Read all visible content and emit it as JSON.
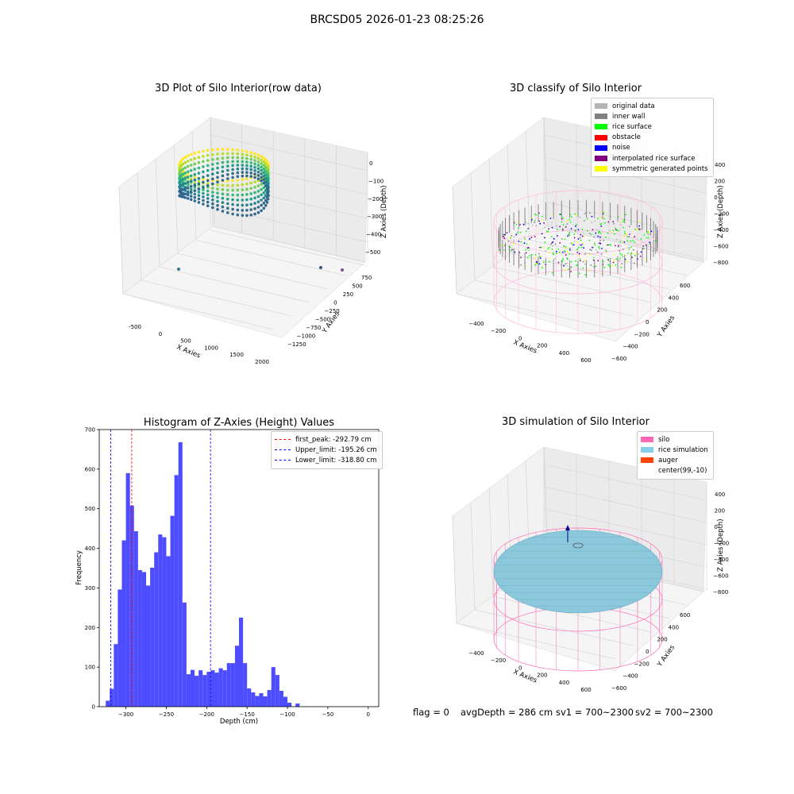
{
  "suptitle": "BRCSD05 2026-01-23 08:25:26",
  "panels": {
    "raw": {
      "title": "3D Plot of Silo Interior(row data)",
      "x_label": "X Axies",
      "y_label": "Y Axies",
      "z_label": "Z Axies (Depth)",
      "x_ticks": [
        "-500",
        "0",
        "500",
        "1000",
        "1500",
        "2000"
      ],
      "y_ticks": [
        "750",
        "500",
        "250",
        "0",
        "−250",
        "−500",
        "−750",
        "−1000",
        "−1250"
      ],
      "z_ticks": [
        "0",
        "−100",
        "−200",
        "−300",
        "−400",
        "−500"
      ]
    },
    "classify": {
      "title": "3D classify of Silo Interior",
      "x_label": "X Axies",
      "y_label": "Y Axies",
      "z_label": "Z Axies (Depth)",
      "x_ticks": [
        "−400",
        "−200",
        "0",
        "200",
        "400",
        "600"
      ],
      "y_ticks": [
        "600",
        "400",
        "200",
        "0",
        "−200",
        "−400",
        "−600"
      ],
      "z_ticks": [
        "400",
        "200",
        "0",
        "−200",
        "−400",
        "−600",
        "−800"
      ],
      "legend": [
        {
          "label": "original data",
          "color": "#b4b4b4"
        },
        {
          "label": "inner wall",
          "color": "#808080"
        },
        {
          "label": "rice surface",
          "color": "#00ff00"
        },
        {
          "label": "obstacle",
          "color": "#ff0000"
        },
        {
          "label": "noise",
          "color": "#0000ff"
        },
        {
          "label": "interpolated rice surface",
          "color": "#800080"
        },
        {
          "label": "symmetric generated points",
          "color": "#ffff00"
        }
      ]
    },
    "simulation": {
      "title": "3D simulation of Silo Interior",
      "x_label": "X Axies",
      "y_label": "Y Axies",
      "z_label": "Z Axies (Depth)",
      "x_ticks": [
        "−400",
        "−200",
        "0",
        "200",
        "400",
        "600"
      ],
      "y_ticks": [
        "600",
        "400",
        "200",
        "0",
        "−200",
        "−400",
        "−600"
      ],
      "z_ticks": [
        "400",
        "200",
        "0",
        "−200",
        "−400",
        "−600",
        "−800"
      ],
      "legend": [
        {
          "label": "silo",
          "color": "#ff69b4"
        },
        {
          "label": "rice simulation",
          "color": "#87ceeb"
        },
        {
          "label": "auger",
          "color": "#ff4500"
        },
        {
          "label": "center(99,-10)",
          "color": "#ffffff"
        }
      ]
    }
  },
  "chart_data": [
    {
      "type": "bar",
      "title": "Histogram of Z-Axies (Height) Values",
      "xlabel": "Depth (cm)",
      "ylabel": "Frequency",
      "xlim": [
        -333,
        13
      ],
      "ylim": [
        0,
        700
      ],
      "x_ticks": [
        -300,
        -250,
        -200,
        -150,
        -100,
        -50,
        0
      ],
      "y_ticks": [
        0,
        100,
        200,
        300,
        400,
        500,
        600,
        700
      ],
      "bar_color": "#4d4dff",
      "bin_width": 5,
      "bins": [
        {
          "x": -325,
          "v": 15
        },
        {
          "x": -320,
          "v": 45
        },
        {
          "x": -315,
          "v": 158
        },
        {
          "x": -310,
          "v": 296
        },
        {
          "x": -305,
          "v": 420
        },
        {
          "x": -300,
          "v": 590
        },
        {
          "x": -295,
          "v": 508
        },
        {
          "x": -290,
          "v": 443
        },
        {
          "x": -285,
          "v": 345
        },
        {
          "x": -280,
          "v": 340
        },
        {
          "x": -275,
          "v": 306
        },
        {
          "x": -270,
          "v": 351
        },
        {
          "x": -265,
          "v": 390
        },
        {
          "x": -260,
          "v": 435
        },
        {
          "x": -255,
          "v": 428
        },
        {
          "x": -250,
          "v": 380
        },
        {
          "x": -245,
          "v": 482
        },
        {
          "x": -240,
          "v": 585
        },
        {
          "x": -235,
          "v": 668
        },
        {
          "x": -230,
          "v": 263
        },
        {
          "x": -225,
          "v": 82
        },
        {
          "x": -220,
          "v": 93
        },
        {
          "x": -215,
          "v": 78
        },
        {
          "x": -210,
          "v": 92
        },
        {
          "x": -205,
          "v": 80
        },
        {
          "x": -200,
          "v": 88
        },
        {
          "x": -195,
          "v": 92
        },
        {
          "x": -190,
          "v": 86
        },
        {
          "x": -185,
          "v": 97
        },
        {
          "x": -180,
          "v": 92
        },
        {
          "x": -175,
          "v": 110
        },
        {
          "x": -170,
          "v": 110
        },
        {
          "x": -165,
          "v": 154
        },
        {
          "x": -160,
          "v": 225
        },
        {
          "x": -155,
          "v": 110
        },
        {
          "x": -150,
          "v": 46
        },
        {
          "x": -145,
          "v": 36
        },
        {
          "x": -140,
          "v": 27
        },
        {
          "x": -135,
          "v": 34
        },
        {
          "x": -130,
          "v": 26
        },
        {
          "x": -125,
          "v": 42
        },
        {
          "x": -120,
          "v": 100
        },
        {
          "x": -115,
          "v": 80
        },
        {
          "x": -110,
          "v": 40
        },
        {
          "x": -105,
          "v": 25
        },
        {
          "x": -100,
          "v": 10
        },
        {
          "x": -95,
          "v": 0
        },
        {
          "x": -90,
          "v": 8
        }
      ],
      "vlines": [
        {
          "label": "first_peak: -292.79 cm",
          "x": -292.79,
          "color": "#ff0000"
        },
        {
          "label": "Upper_limit: -195.26 cm",
          "x": -195.26,
          "color": "#0000ff"
        },
        {
          "label": "Lower_limit: -318.80 cm",
          "x": -318.8,
          "color": "#0000ff"
        }
      ]
    }
  ],
  "status": {
    "flag": "flag = 0",
    "avg": "avgDepth = 286 cm",
    "sv1": "sv1 = 700~2300",
    "sv2": "sv2 = 700~2300"
  }
}
